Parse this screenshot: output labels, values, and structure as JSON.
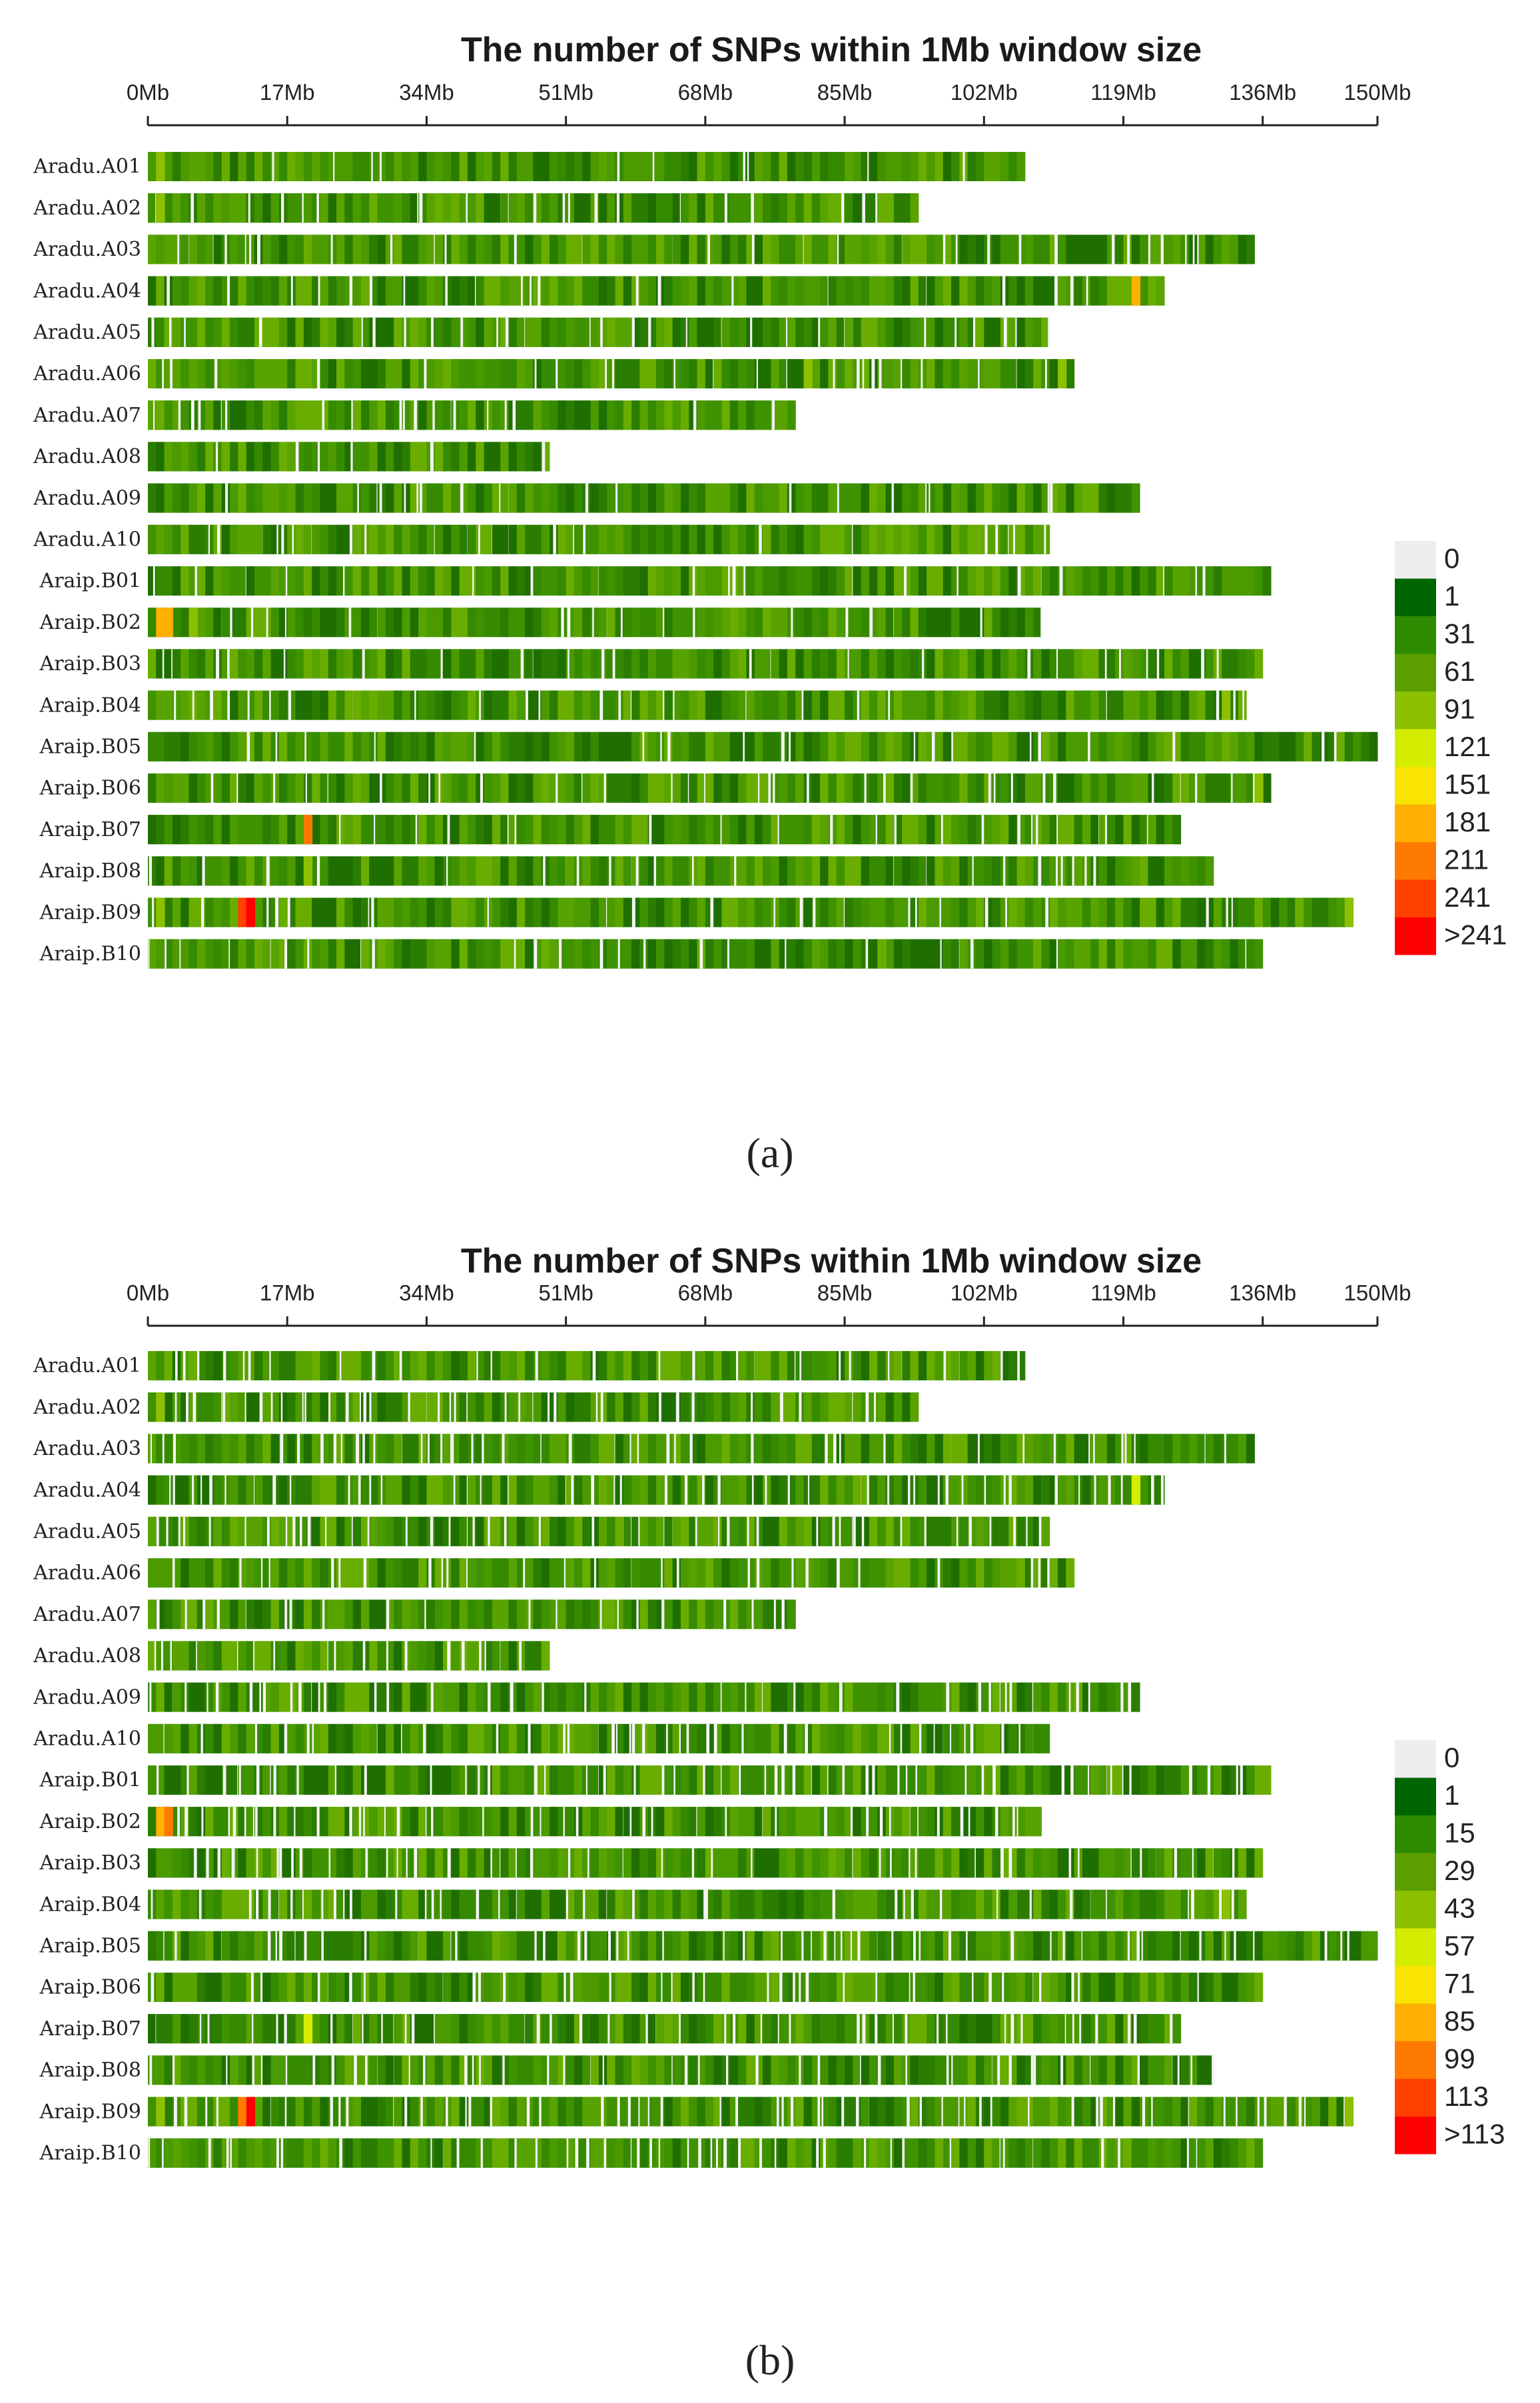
{
  "chart_data": [
    {
      "type": "heatmap",
      "panel_label": "(a)",
      "title": "The number of SNPs within 1Mb window size",
      "x_ticks": [
        "0Mb",
        "17Mb",
        "34Mb",
        "51Mb",
        "68Mb",
        "85Mb",
        "102Mb",
        "119Mb",
        "136Mb",
        "150Mb"
      ],
      "x_tick_values": [
        0,
        17,
        34,
        51,
        68,
        85,
        102,
        119,
        136,
        150
      ],
      "x_range": [
        0,
        150
      ],
      "legend": [
        "0",
        "1",
        "31",
        "61",
        "91",
        "121",
        "151",
        "181",
        "211",
        "241",
        ">241"
      ],
      "legend_colors": [
        "#eeeeee",
        "#006400",
        "#2e8b00",
        "#5a9e00",
        "#8cc000",
        "#d4ec00",
        "#f8e400",
        "#ffb000",
        "#ff7a00",
        "#ff4000",
        "#ff0000"
      ],
      "chromosomes": [
        {
          "name": "Aradu.A01",
          "length": 107,
          "hotspots": [
            {
              "pos": 1,
              "level": 4
            }
          ]
        },
        {
          "name": "Aradu.A02",
          "length": 94,
          "hotspots": [
            {
              "pos": 1,
              "level": 4
            }
          ]
        },
        {
          "name": "Aradu.A03",
          "length": 135,
          "hotspots": []
        },
        {
          "name": "Aradu.A04",
          "length": 124,
          "hotspots": [
            {
              "pos": 120,
              "level": 7
            }
          ]
        },
        {
          "name": "Aradu.A05",
          "length": 110,
          "hotspots": []
        },
        {
          "name": "Aradu.A06",
          "length": 113,
          "hotspots": [
            {
              "pos": 80,
              "level": 4
            },
            {
              "pos": 111,
              "level": 4
            }
          ]
        },
        {
          "name": "Aradu.A07",
          "length": 79,
          "hotspots": []
        },
        {
          "name": "Aradu.A08",
          "length": 49,
          "hotspots": []
        },
        {
          "name": "Aradu.A09",
          "length": 121,
          "hotspots": []
        },
        {
          "name": "Aradu.A10",
          "length": 110,
          "hotspots": []
        },
        {
          "name": "Araip.B01",
          "length": 137,
          "hotspots": []
        },
        {
          "name": "Araip.B02",
          "length": 109,
          "hotspots": [
            {
              "pos": 1,
              "level": 7
            },
            {
              "pos": 2,
              "level": 7
            },
            {
              "pos": 5,
              "level": 4
            }
          ]
        },
        {
          "name": "Araip.B03",
          "length": 136,
          "hotspots": []
        },
        {
          "name": "Araip.B04",
          "length": 134,
          "hotspots": [
            {
              "pos": 131,
              "level": 4
            }
          ]
        },
        {
          "name": "Araip.B05",
          "length": 150,
          "hotspots": []
        },
        {
          "name": "Araip.B06",
          "length": 137,
          "hotspots": [
            {
              "pos": 135,
              "level": 4
            }
          ]
        },
        {
          "name": "Araip.B07",
          "length": 126,
          "hotspots": [
            {
              "pos": 19,
              "level": 8
            }
          ]
        },
        {
          "name": "Araip.B08",
          "length": 130,
          "hotspots": [
            {
              "pos": 19,
              "level": 4
            }
          ]
        },
        {
          "name": "Araip.B09",
          "length": 147,
          "hotspots": [
            {
              "pos": 1,
              "level": 4
            },
            {
              "pos": 11,
              "level": 9
            },
            {
              "pos": 12,
              "level": 10
            },
            {
              "pos": 146,
              "level": 4
            }
          ]
        },
        {
          "name": "Araip.B10",
          "length": 136,
          "hotspots": []
        }
      ]
    },
    {
      "type": "heatmap",
      "panel_label": "(b)",
      "title": "The number of SNPs within 1Mb window size",
      "x_ticks": [
        "0Mb",
        "17Mb",
        "34Mb",
        "51Mb",
        "68Mb",
        "85Mb",
        "102Mb",
        "119Mb",
        "136Mb",
        "150Mb"
      ],
      "x_tick_values": [
        0,
        17,
        34,
        51,
        68,
        85,
        102,
        119,
        136,
        150
      ],
      "x_range": [
        0,
        150
      ],
      "legend": [
        "0",
        "1",
        "15",
        "29",
        "43",
        "57",
        "71",
        "85",
        "99",
        "113",
        ">113"
      ],
      "legend_colors": [
        "#eeeeee",
        "#006400",
        "#2e8b00",
        "#5a9e00",
        "#8cc000",
        "#d4ec00",
        "#f8e400",
        "#ffb000",
        "#ff7a00",
        "#ff4000",
        "#ff0000"
      ],
      "chromosomes": [
        {
          "name": "Aradu.A01",
          "length": 107,
          "hotspots": []
        },
        {
          "name": "Aradu.A02",
          "length": 94,
          "hotspots": [
            {
              "pos": 1,
              "level": 4
            }
          ]
        },
        {
          "name": "Aradu.A03",
          "length": 135,
          "hotspots": []
        },
        {
          "name": "Aradu.A04",
          "length": 124,
          "hotspots": [
            {
              "pos": 120,
              "level": 5
            }
          ]
        },
        {
          "name": "Aradu.A05",
          "length": 110,
          "hotspots": []
        },
        {
          "name": "Aradu.A06",
          "length": 113,
          "hotspots": []
        },
        {
          "name": "Aradu.A07",
          "length": 79,
          "hotspots": []
        },
        {
          "name": "Aradu.A08",
          "length": 49,
          "hotspots": []
        },
        {
          "name": "Aradu.A09",
          "length": 121,
          "hotspots": []
        },
        {
          "name": "Aradu.A10",
          "length": 110,
          "hotspots": []
        },
        {
          "name": "Araip.B01",
          "length": 137,
          "hotspots": []
        },
        {
          "name": "Araip.B02",
          "length": 109,
          "hotspots": [
            {
              "pos": 1,
              "level": 7
            },
            {
              "pos": 2,
              "level": 8
            }
          ]
        },
        {
          "name": "Araip.B03",
          "length": 136,
          "hotspots": []
        },
        {
          "name": "Araip.B04",
          "length": 134,
          "hotspots": [
            {
              "pos": 131,
              "level": 4
            }
          ]
        },
        {
          "name": "Araip.B05",
          "length": 150,
          "hotspots": []
        },
        {
          "name": "Araip.B06",
          "length": 136,
          "hotspots": []
        },
        {
          "name": "Araip.B07",
          "length": 126,
          "hotspots": [
            {
              "pos": 19,
              "level": 5
            }
          ]
        },
        {
          "name": "Araip.B08",
          "length": 130,
          "hotspots": []
        },
        {
          "name": "Araip.B09",
          "length": 147,
          "hotspots": [
            {
              "pos": 1,
              "level": 4
            },
            {
              "pos": 11,
              "level": 8
            },
            {
              "pos": 12,
              "level": 10
            },
            {
              "pos": 146,
              "level": 4
            }
          ]
        },
        {
          "name": "Araip.B10",
          "length": 136,
          "hotspots": []
        }
      ]
    }
  ]
}
